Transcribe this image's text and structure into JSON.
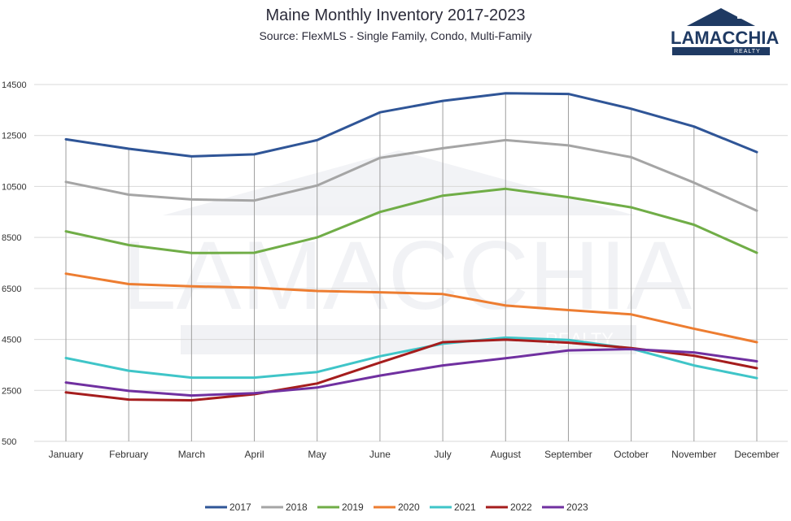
{
  "title": "Maine Monthly Inventory 2017-2023",
  "subtitle": "Source: FlexMLS - Single Family, Condo, Multi-Family",
  "logo": {
    "name": "LAMACCHIA",
    "sub": "REALTY",
    "color": "#1f3a63"
  },
  "watermark": {
    "name": "LAMACCHIA",
    "sub": "REALTY"
  },
  "chart_data": {
    "type": "line",
    "categories": [
      "January",
      "February",
      "March",
      "April",
      "May",
      "June",
      "July",
      "August",
      "September",
      "October",
      "November",
      "December"
    ],
    "ylim": [
      500,
      14500
    ],
    "yticks": [
      500,
      2500,
      4500,
      6500,
      8500,
      10500,
      12500,
      14500
    ],
    "ytick_labels": [
      "500",
      "2500",
      "4500",
      "6500",
      "8500",
      "10500",
      "12500",
      "14500"
    ],
    "grid": true,
    "legend": "bottom",
    "series": [
      {
        "name": "2017",
        "color": "#2f5597",
        "values": [
          12350,
          11980,
          11680,
          11760,
          12320,
          13410,
          13860,
          14160,
          14130,
          13550,
          12850,
          11850
        ]
      },
      {
        "name": "2018",
        "color": "#a5a5a5",
        "values": [
          10680,
          10180,
          9990,
          9950,
          10540,
          11620,
          12000,
          12320,
          12110,
          11650,
          10650,
          9550
        ]
      },
      {
        "name": "2019",
        "color": "#70ad47",
        "values": [
          8740,
          8200,
          7890,
          7900,
          8500,
          9500,
          10140,
          10410,
          10080,
          9680,
          9000,
          7900
        ]
      },
      {
        "name": "2020",
        "color": "#ed7d31",
        "values": [
          7080,
          6670,
          6580,
          6530,
          6400,
          6350,
          6280,
          5830,
          5650,
          5480,
          4920,
          4390
        ]
      },
      {
        "name": "2021",
        "color": "#3fc5c8",
        "values": [
          3770,
          3270,
          3000,
          3000,
          3220,
          3840,
          4330,
          4570,
          4480,
          4140,
          3480,
          2980
        ]
      },
      {
        "name": "2022",
        "color": "#a51d1d",
        "values": [
          2420,
          2140,
          2110,
          2350,
          2770,
          3590,
          4390,
          4490,
          4370,
          4160,
          3860,
          3370
        ]
      },
      {
        "name": "2023",
        "color": "#7030a0",
        "values": [
          2810,
          2480,
          2300,
          2390,
          2610,
          3080,
          3480,
          3760,
          4070,
          4120,
          3990,
          3640
        ]
      }
    ]
  }
}
